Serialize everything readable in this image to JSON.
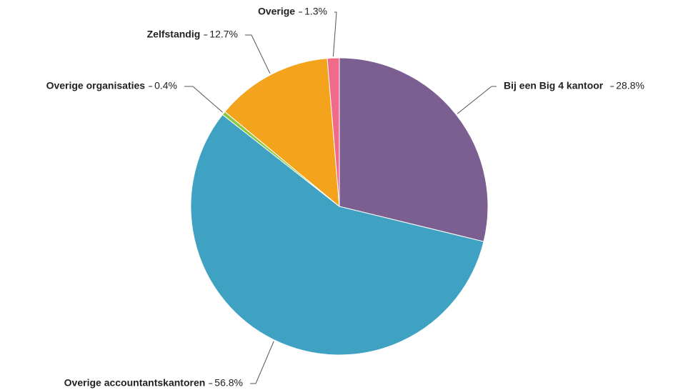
{
  "chart_data": {
    "type": "pie",
    "categories": [
      "Bij een Big 4 kantoor",
      "Overige accountantskantoren",
      "Overige organisaties",
      "Zelfstandig",
      "Overige"
    ],
    "values": [
      28.8,
      56.8,
      0.4,
      12.7,
      1.3
    ],
    "value_labels": [
      "28.8%",
      "56.8%",
      "0.4%",
      "12.7%",
      "1.3%"
    ],
    "colors": [
      "#7b5f91",
      "#40a2c2",
      "#8dc63f",
      "#f4a41c",
      "#f06a8a"
    ]
  }
}
